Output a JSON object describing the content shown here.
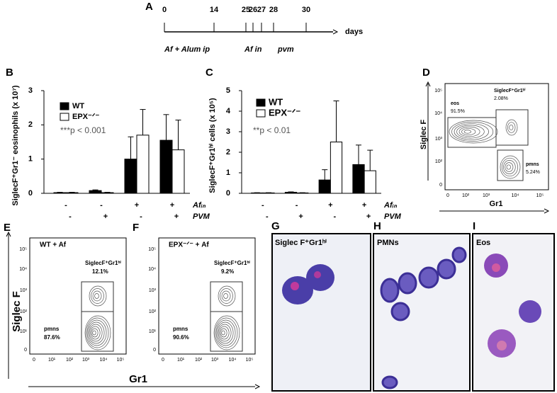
{
  "panel_a": {
    "letter": "A",
    "days": [
      "0",
      "14",
      "25",
      "26",
      "27",
      "28",
      "30"
    ],
    "unit": "days",
    "events": [
      "Af + Alum ip",
      "Af in",
      "pvm"
    ]
  },
  "chart_data": [
    {
      "type": "bar",
      "letter": "B",
      "y_label": "SiglecF⁺Gr1⁻ eosinophils (x 10⁷)",
      "annotation": "***p < 0.001",
      "ylim": [
        0,
        3
      ],
      "yticks": [
        0,
        1,
        2,
        3
      ],
      "series": [
        {
          "name": "WT",
          "color": "#000000",
          "values": [
            0.02,
            0.08,
            1.0,
            1.55
          ],
          "errors": [
            0.01,
            0.02,
            0.65,
            0.75
          ]
        },
        {
          "name": "EPX⁻ᐟ⁻",
          "color": "#ffffff",
          "values": [
            0.02,
            0.02,
            1.7,
            1.27
          ],
          "errors": [
            0.01,
            0.01,
            0.75,
            0.87
          ]
        }
      ],
      "condition_rows": [
        {
          "label": "Afᵢₙ",
          "values": [
            "-",
            "-",
            "+",
            "+"
          ]
        },
        {
          "label": "PVM",
          "values": [
            "-",
            "+",
            "-",
            "+"
          ]
        }
      ]
    },
    {
      "type": "bar",
      "letter": "C",
      "y_label": "SiglecF⁺Gr1ʰⁱ cells (x 10⁵)",
      "annotation": "**p < 0.01",
      "ylim": [
        0,
        5
      ],
      "yticks": [
        0,
        1,
        2,
        3,
        4,
        5
      ],
      "series": [
        {
          "name": "WT",
          "color": "#000000",
          "values": [
            0.02,
            0.05,
            0.65,
            1.4
          ],
          "errors": [
            0.01,
            0.02,
            0.5,
            0.95
          ]
        },
        {
          "name": "EPX⁻ᐟ⁻",
          "color": "#ffffff",
          "values": [
            0.02,
            0.02,
            2.5,
            1.1
          ],
          "errors": [
            0.01,
            0.01,
            2.0,
            1.0
          ]
        }
      ],
      "condition_rows": [
        {
          "label": "Afᵢₙ",
          "values": [
            "-",
            "-",
            "+",
            "+"
          ]
        },
        {
          "label": "PVM",
          "values": [
            "-",
            "+",
            "-",
            "+"
          ]
        }
      ]
    }
  ],
  "panel_d": {
    "letter": "D",
    "y_label": "Siglec F",
    "x_label": "Gr1",
    "x_ticks": [
      "0",
      "10²",
      "10³",
      "10⁴",
      "10⁵"
    ],
    "y_ticks": [
      "10⁵",
      "10⁴",
      "10³",
      "10²",
      "0"
    ],
    "gates": [
      {
        "label": "eos",
        "percent": "91.5%"
      },
      {
        "label": "SiglecF⁺Gr1ʰⁱ",
        "percent": "2.08%"
      },
      {
        "label": "pmns",
        "percent": "5.24%"
      }
    ]
  },
  "panel_ef": {
    "y_label": "Siglec F",
    "x_label": "Gr1"
  },
  "panel_e": {
    "letter": "E",
    "title": "WT + Af",
    "x_ticks": [
      "0",
      "10¹",
      "10²",
      "10³",
      "10⁴",
      "10⁵"
    ],
    "y_ticks": [
      "10⁵",
      "10⁴",
      "10³",
      "10²",
      "10¹",
      "0"
    ],
    "gates": [
      {
        "label": "SiglecF⁺Gr1ʰⁱ",
        "percent": "12.1%"
      },
      {
        "label": "pmns",
        "percent": "87.6%"
      }
    ]
  },
  "panel_f": {
    "letter": "F",
    "title": "EPX⁻ᐟ⁻ + Af",
    "x_ticks": [
      "0",
      "10¹",
      "10²",
      "10³",
      "10⁴",
      "10⁵"
    ],
    "y_ticks": [
      "10⁵",
      "10⁴",
      "10³",
      "10²",
      "10¹",
      "0"
    ],
    "gates": [
      {
        "label": "SiglecF⁺Gr1ʰⁱ",
        "percent": "9.2%"
      },
      {
        "label": "pmns",
        "percent": "90.6%"
      }
    ]
  },
  "micrographs": [
    {
      "letter": "G",
      "label": "Siglec F⁺Gr1ʰⁱ"
    },
    {
      "letter": "H",
      "label": "PMNs"
    },
    {
      "letter": "I",
      "label": "Eos"
    }
  ]
}
